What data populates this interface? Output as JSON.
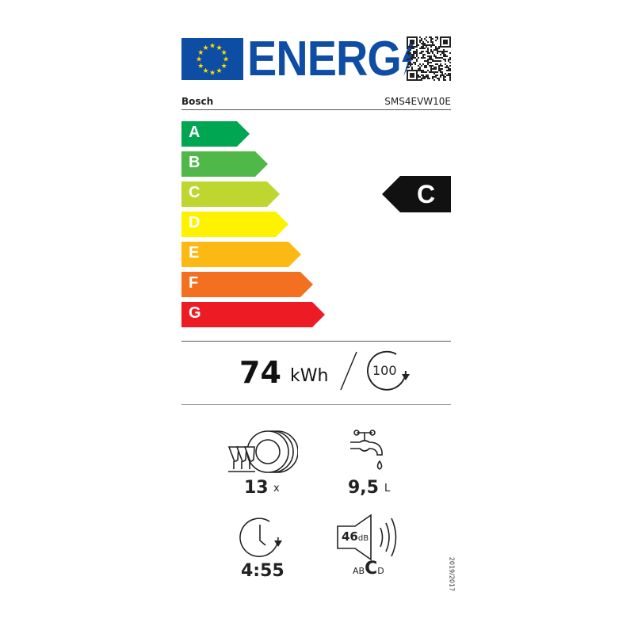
{
  "header": {
    "logo_text": "ENERG",
    "brand": "Bosch",
    "model": "SMS4EVW10E"
  },
  "scale": [
    {
      "label": "A",
      "color": "#00a651"
    },
    {
      "label": "B",
      "color": "#50b848"
    },
    {
      "label": "C",
      "color": "#bed630"
    },
    {
      "label": "D",
      "color": "#fff200"
    },
    {
      "label": "E",
      "color": "#fdb913"
    },
    {
      "label": "F",
      "color": "#f37021"
    },
    {
      "label": "G",
      "color": "#ed1c24"
    }
  ],
  "rating": {
    "class": "C"
  },
  "energy": {
    "value": "74",
    "unit": "kWh",
    "cycles": "100"
  },
  "capacity": {
    "value": "13",
    "unit": "x"
  },
  "water": {
    "value": "9,5",
    "unit": "L"
  },
  "duration": {
    "value": "4:55"
  },
  "noise": {
    "value": "46",
    "unit": "dB",
    "classes_pre": "AB",
    "class": "C",
    "classes_post": "D"
  },
  "regulation": "2019/2017",
  "colors": {
    "eu_blue": "#0e4da4",
    "star_yellow": "#ffdd00"
  }
}
